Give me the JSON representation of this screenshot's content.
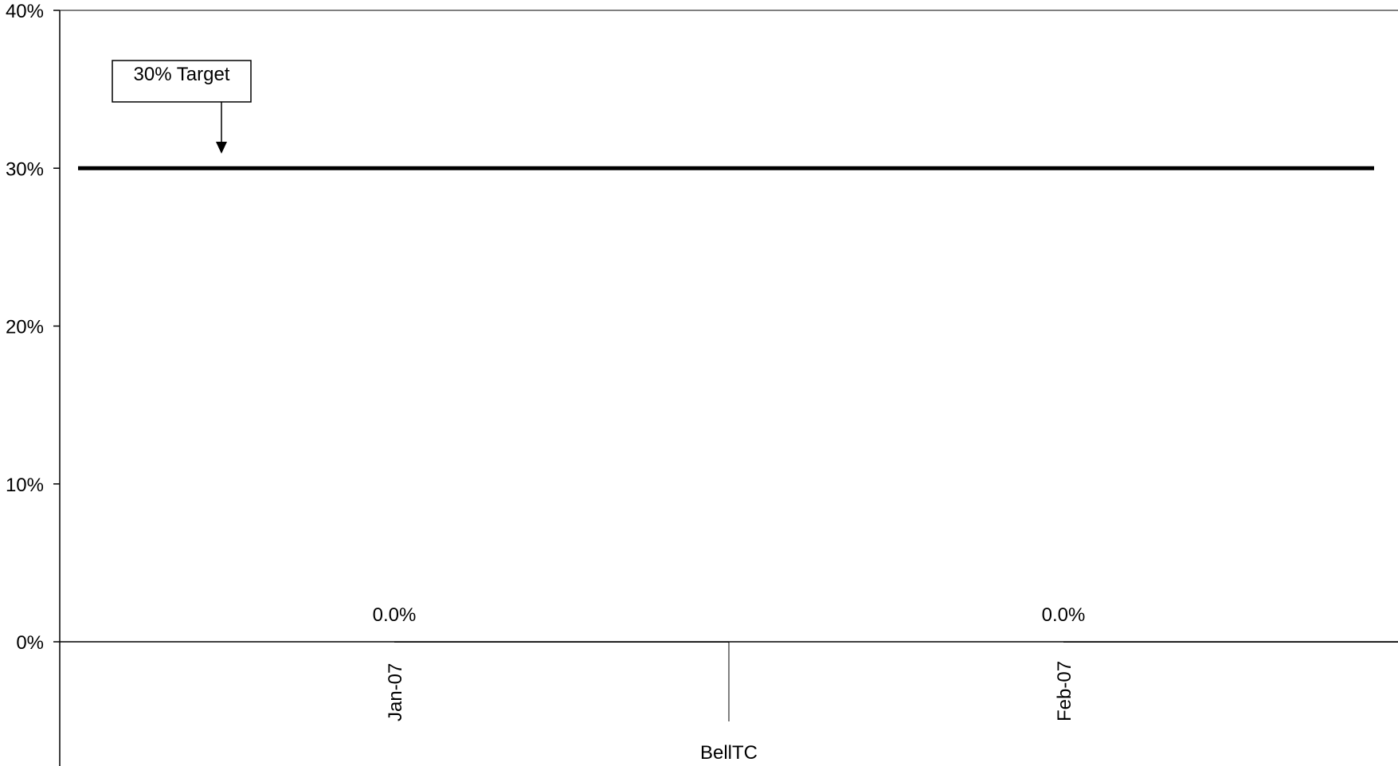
{
  "chart_data": {
    "type": "bar",
    "title": "",
    "xlabel": "",
    "ylabel": "",
    "ylim": [
      0,
      0.4
    ],
    "y_ticks": [
      {
        "value": 0,
        "label": "0%"
      },
      {
        "value": 0.1,
        "label": "10%"
      },
      {
        "value": 0.2,
        "label": "20%"
      },
      {
        "value": 0.3,
        "label": "30%"
      },
      {
        "value": 0.4,
        "label": "40%"
      }
    ],
    "categories": [
      "Jan-07",
      "Feb-07"
    ],
    "values": [
      0.0,
      0.0
    ],
    "data_labels": [
      "0.0%",
      "0.0%"
    ],
    "group_label": "BellTC",
    "target": {
      "value": 0.3,
      "label": "30% Target"
    },
    "grid": false,
    "legend": "none"
  }
}
